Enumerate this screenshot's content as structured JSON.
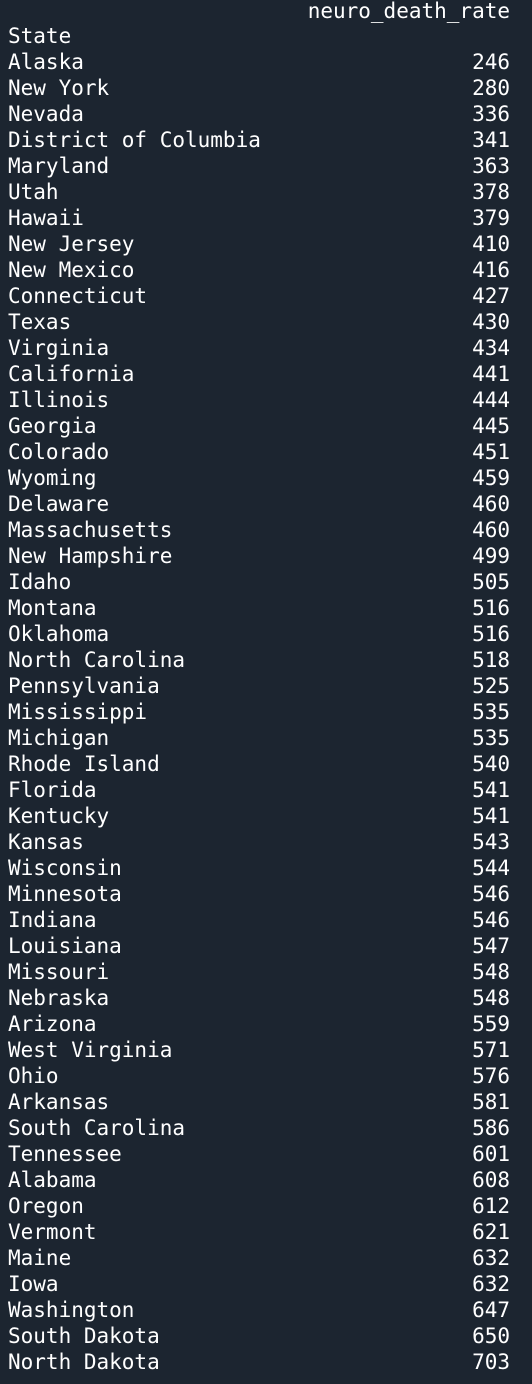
{
  "table": {
    "column_header": "neuro_death_rate",
    "index_name": "State",
    "rows": [
      {
        "state": "Alaska",
        "value": "246"
      },
      {
        "state": "New York",
        "value": "280"
      },
      {
        "state": "Nevada",
        "value": "336"
      },
      {
        "state": "District of Columbia",
        "value": "341"
      },
      {
        "state": "Maryland",
        "value": "363"
      },
      {
        "state": "Utah",
        "value": "378"
      },
      {
        "state": "Hawaii",
        "value": "379"
      },
      {
        "state": "New Jersey",
        "value": "410"
      },
      {
        "state": "New Mexico",
        "value": "416"
      },
      {
        "state": "Connecticut",
        "value": "427"
      },
      {
        "state": "Texas",
        "value": "430"
      },
      {
        "state": "Virginia",
        "value": "434"
      },
      {
        "state": "California",
        "value": "441"
      },
      {
        "state": "Illinois",
        "value": "444"
      },
      {
        "state": "Georgia",
        "value": "445"
      },
      {
        "state": "Colorado",
        "value": "451"
      },
      {
        "state": "Wyoming",
        "value": "459"
      },
      {
        "state": "Delaware",
        "value": "460"
      },
      {
        "state": "Massachusetts",
        "value": "460"
      },
      {
        "state": "New Hampshire",
        "value": "499"
      },
      {
        "state": "Idaho",
        "value": "505"
      },
      {
        "state": "Montana",
        "value": "516"
      },
      {
        "state": "Oklahoma",
        "value": "516"
      },
      {
        "state": "North Carolina",
        "value": "518"
      },
      {
        "state": "Pennsylvania",
        "value": "525"
      },
      {
        "state": "Mississippi",
        "value": "535"
      },
      {
        "state": "Michigan",
        "value": "535"
      },
      {
        "state": "Rhode Island",
        "value": "540"
      },
      {
        "state": "Florida",
        "value": "541"
      },
      {
        "state": "Kentucky",
        "value": "541"
      },
      {
        "state": "Kansas",
        "value": "543"
      },
      {
        "state": "Wisconsin",
        "value": "544"
      },
      {
        "state": "Minnesota",
        "value": "546"
      },
      {
        "state": "Indiana",
        "value": "546"
      },
      {
        "state": "Louisiana",
        "value": "547"
      },
      {
        "state": "Missouri",
        "value": "548"
      },
      {
        "state": "Nebraska",
        "value": "548"
      },
      {
        "state": "Arizona",
        "value": "559"
      },
      {
        "state": "West Virginia",
        "value": "571"
      },
      {
        "state": "Ohio",
        "value": "576"
      },
      {
        "state": "Arkansas",
        "value": "581"
      },
      {
        "state": "South Carolina",
        "value": "586"
      },
      {
        "state": "Tennessee",
        "value": "601"
      },
      {
        "state": "Alabama",
        "value": "608"
      },
      {
        "state": "Oregon",
        "value": "612"
      },
      {
        "state": "Vermont",
        "value": "621"
      },
      {
        "state": "Maine",
        "value": "632"
      },
      {
        "state": "Iowa",
        "value": "632"
      },
      {
        "state": "Washington",
        "value": "647"
      },
      {
        "state": "South Dakota",
        "value": "650"
      },
      {
        "state": "North Dakota",
        "value": "703"
      }
    ]
  }
}
